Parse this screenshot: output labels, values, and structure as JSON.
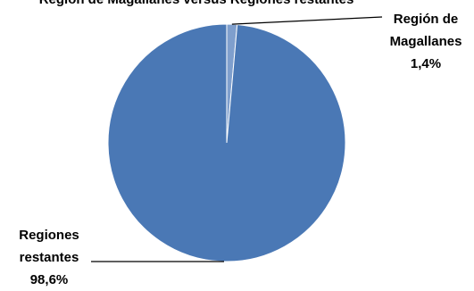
{
  "chart_data": {
    "type": "pie",
    "title": "Región de Magallanes versus Regiones restantes",
    "slices": [
      {
        "lines": [
          "Región de",
          "Magallanes"
        ],
        "value_label": "1,4%",
        "value": 1.4,
        "color": "#7f9fcd"
      },
      {
        "lines": [
          "Regiones",
          "restantes"
        ],
        "value_label": "98,6%",
        "value": 98.6,
        "color": "#4a78b5"
      }
    ],
    "start_angle": "12 o'clock, clockwise"
  }
}
